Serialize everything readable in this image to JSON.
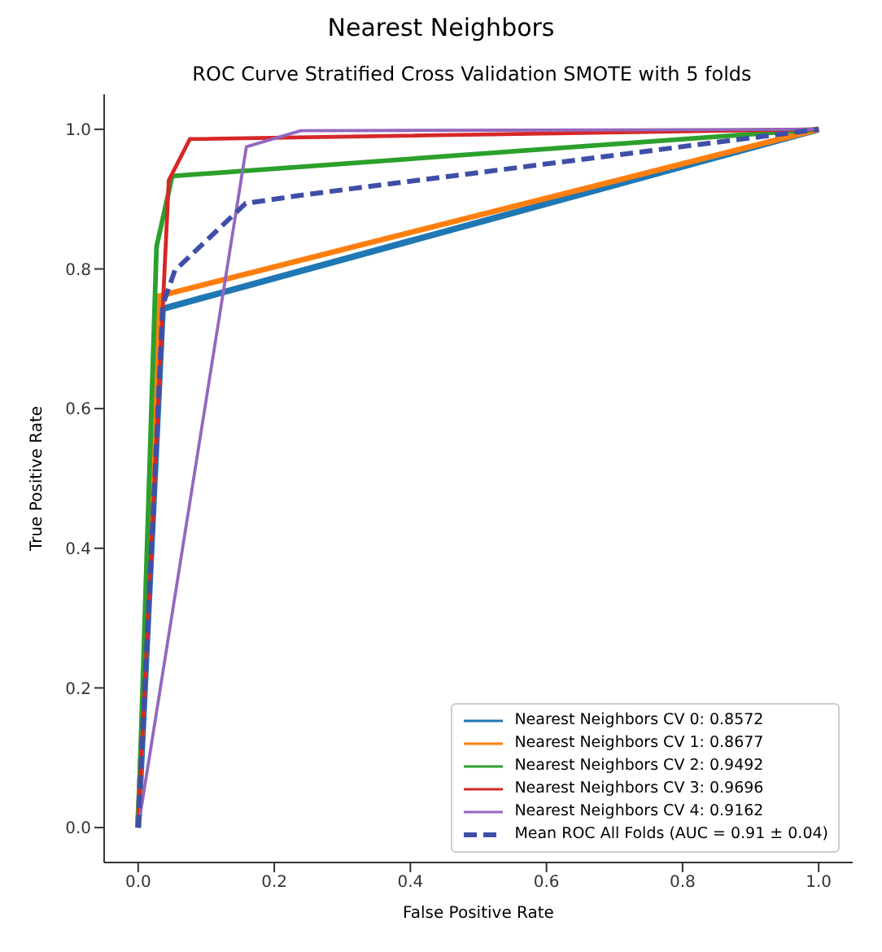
{
  "chart_data": {
    "type": "line",
    "title": "Nearest Neighbors",
    "subtitle": "ROC Curve Stratified Cross Validation SMOTE with 5 folds",
    "xlabel": "False Positive Rate",
    "ylabel": "True Positive Rate",
    "xlim": [
      -0.05,
      1.05
    ],
    "ylim": [
      -0.05,
      1.05
    ],
    "xticks": [
      {
        "value": 0,
        "label": "0.0"
      },
      {
        "value": 0.2,
        "label": "0.2"
      },
      {
        "value": 0.4,
        "label": "0.4"
      },
      {
        "value": 0.6,
        "label": "0.6"
      },
      {
        "value": 0.8,
        "label": "0.8"
      },
      {
        "value": 1,
        "label": "1.0"
      }
    ],
    "yticks": [
      {
        "value": 0,
        "label": "0.0"
      },
      {
        "value": 0.2,
        "label": "0.2"
      },
      {
        "value": 0.4,
        "label": "0.4"
      },
      {
        "value": 0.6,
        "label": "0.6"
      },
      {
        "value": 0.8,
        "label": "0.8"
      },
      {
        "value": 1,
        "label": "1.0"
      }
    ],
    "grid": false,
    "legend": "bottom right",
    "marker": "none",
    "series": [
      {
        "name": "Nearest Neighbors CV 0: 0.8572",
        "color": "#1f77b4",
        "x": [
          0,
          0.036,
          1
        ],
        "values": [
          0,
          0.743,
          1
        ]
      },
      {
        "name": "Nearest Neighbors CV 1: 0.8677",
        "color": "#ff7f0e",
        "x": [
          0,
          0.03,
          1
        ],
        "values": [
          0,
          0.761,
          1
        ]
      },
      {
        "name": "Nearest Neighbors CV 2: 0.9492",
        "color": "#2ca02c",
        "x": [
          0,
          0.027,
          0.05,
          1
        ],
        "values": [
          0,
          0.832,
          0.933,
          1
        ]
      },
      {
        "name": "Nearest Neighbors CV 3: 0.9696",
        "color": "#d62728",
        "x": [
          0,
          0.045,
          0.076,
          1
        ],
        "values": [
          0,
          0.927,
          0.986,
          1
        ]
      },
      {
        "name": "Nearest Neighbors CV 4: 0.9162",
        "color": "#9467bd",
        "x": [
          0,
          0.159,
          0.239,
          1
        ],
        "values": [
          0,
          0.975,
          0.998,
          1
        ]
      },
      {
        "name": "Mean ROC All Folds (AUC = 0.91 ± 0.04)",
        "color": "#3f4fa8",
        "line_style": "dashed",
        "x": [
          0,
          0.028,
          0.036,
          0.054,
          0.158,
          0.25,
          1
        ],
        "values": [
          0,
          0.575,
          0.748,
          0.798,
          0.894,
          0.907,
          1
        ]
      }
    ]
  }
}
